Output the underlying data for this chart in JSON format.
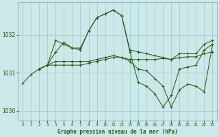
{
  "title": "Graphe pression niveau de la mer (hPa)",
  "bg_color": "#cce8e8",
  "grid_color": "#99cccc",
  "line_color": "#2d5a1b",
  "xlim": [
    -0.5,
    23.5
  ],
  "ylim": [
    1029.75,
    1032.85
  ],
  "yticks": [
    1030,
    1031,
    1032
  ],
  "xticks": [
    0,
    1,
    2,
    3,
    4,
    5,
    6,
    7,
    8,
    9,
    10,
    11,
    12,
    13,
    14,
    15,
    16,
    17,
    18,
    19,
    20,
    21,
    22,
    23
  ],
  "series": [
    {
      "x": [
        0,
        1,
        2,
        3,
        4,
        5,
        6,
        7,
        8,
        9,
        10,
        11,
        12,
        13,
        14,
        15,
        16,
        17,
        18,
        19,
        20,
        21,
        22,
        23
      ],
      "y": [
        1030.72,
        1030.95,
        1031.1,
        1031.2,
        1031.55,
        1031.8,
        1031.65,
        1031.65,
        1032.1,
        1032.45,
        1032.55,
        1032.65,
        1032.5,
        1031.55,
        1030.75,
        1030.65,
        1030.45,
        1030.1,
        1030.4,
        1031.1,
        1031.15,
        1031.2,
        1031.6,
        1031.75
      ]
    },
    {
      "x": [
        2,
        3,
        4,
        5,
        6,
        7,
        8,
        9,
        10,
        11,
        12,
        13,
        14,
        15,
        16,
        17,
        18,
        19,
        20,
        21,
        22,
        23
      ],
      "y": [
        1031.1,
        1031.2,
        1031.85,
        1031.75,
        1031.65,
        1031.6,
        1032.1,
        1032.45,
        1032.55,
        1032.65,
        1032.5,
        1031.6,
        1031.55,
        1031.5,
        1031.45,
        1031.4,
        1031.35,
        1031.5,
        1031.5,
        1031.5,
        1031.75,
        1031.85
      ]
    },
    {
      "x": [
        2,
        3,
        4,
        5,
        6,
        7,
        8,
        9,
        10,
        11,
        12,
        13,
        14,
        15,
        16,
        17,
        18,
        19,
        20,
        21,
        22,
        23
      ],
      "y": [
        1031.1,
        1031.2,
        1031.3,
        1031.3,
        1031.3,
        1031.3,
        1031.3,
        1031.35,
        1031.4,
        1031.45,
        1031.4,
        1031.3,
        1031.1,
        1031.05,
        1030.85,
        1030.65,
        1030.1,
        1030.55,
        1030.7,
        1030.65,
        1030.5,
        1031.75
      ]
    },
    {
      "x": [
        2,
        3,
        4,
        5,
        6,
        7,
        8,
        9,
        10,
        11,
        12,
        13,
        14,
        15,
        16,
        17,
        18,
        19,
        20,
        21,
        22,
        23
      ],
      "y": [
        1031.1,
        1031.2,
        1031.2,
        1031.2,
        1031.2,
        1031.2,
        1031.25,
        1031.3,
        1031.35,
        1031.4,
        1031.4,
        1031.35,
        1031.35,
        1031.35,
        1031.35,
        1031.38,
        1031.35,
        1031.4,
        1031.42,
        1031.42,
        1031.5,
        1031.55
      ]
    }
  ]
}
